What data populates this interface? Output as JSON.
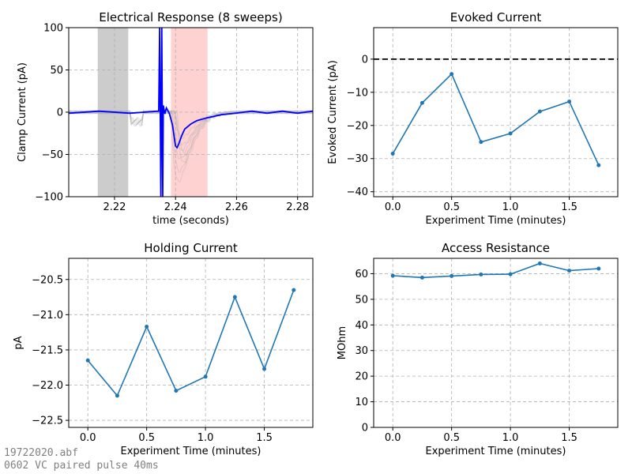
{
  "footer": {
    "filename": "19722020.abf",
    "protocol": "0602 VC paired pulse 40ms"
  },
  "colors": {
    "series": "#1f77b4",
    "sweep_avg": "#0000ff",
    "sweeps": "#aaaaaa",
    "baseline_region": "#7f7f7f",
    "measure_region": "#ff7f7f"
  },
  "chart_data": [
    {
      "id": "response",
      "type": "line",
      "title": "Electrical Response (8 sweeps)",
      "xlabel": "time (seconds)",
      "ylabel": "Clamp Current (pA)",
      "xlim": [
        2.205,
        2.285
      ],
      "ylim": [
        -100,
        100
      ],
      "xticks": [
        2.22,
        2.24,
        2.26,
        2.28
      ],
      "xtick_labels": [
        "2.22",
        "2.24",
        "2.26",
        "2.28"
      ],
      "yticks": [
        -100,
        -50,
        0,
        50,
        100
      ],
      "ytick_labels": [
        "−100",
        "−50",
        "0",
        "50",
        "100"
      ],
      "grid": true,
      "sweep_count": 8,
      "shaded_regions": [
        {
          "name": "baseline",
          "x": [
            2.2145,
            2.2245
          ],
          "color": "#7f7f7f"
        },
        {
          "name": "measurement",
          "x": [
            2.2385,
            2.2505
          ],
          "color": "#ff7f7f"
        }
      ],
      "average_trace": {
        "x": [
          2.205,
          2.215,
          2.225,
          2.2345,
          2.2348,
          2.2352,
          2.2355,
          2.2358,
          2.236,
          2.2365,
          2.237,
          2.2375,
          2.238,
          2.239,
          2.2395,
          2.24,
          2.2405,
          2.241,
          2.242,
          2.243,
          2.245,
          2.247,
          2.25,
          2.255,
          2.26,
          2.265,
          2.27,
          2.275,
          2.28,
          2.285
        ],
        "y": [
          0,
          0,
          0,
          0,
          100,
          -100,
          100,
          -100,
          8,
          -2,
          5,
          2,
          -2,
          -15,
          -28,
          -40,
          -42,
          -38,
          -28,
          -20,
          -14,
          -10,
          -7,
          -3,
          -1,
          0,
          0,
          0,
          0,
          0
        ]
      },
      "sweep_peaks": [
        -82,
        -70,
        -55,
        -45,
        -30,
        -38,
        -60,
        -50
      ]
    },
    {
      "id": "evoked",
      "type": "line",
      "title": "Evoked Current",
      "xlabel": "Experiment Time (minutes)",
      "ylabel": "Evoked Current (pA)",
      "xlim": [
        -0.1625,
        1.9125
      ],
      "ylim": [
        -41.5,
        9.5
      ],
      "xticks": [
        0,
        0.5,
        1,
        1.5
      ],
      "xtick_labels": [
        "0.0",
        "0.5",
        "1.0",
        "1.5"
      ],
      "yticks": [
        -40,
        -30,
        -20,
        -10,
        0
      ],
      "ytick_labels": [
        "−40",
        "−30",
        "−20",
        "−10",
        "0"
      ],
      "grid": true,
      "reference_line": {
        "y": 0,
        "style": "dashed",
        "color": "#000000"
      },
      "series": [
        {
          "x": [
            0,
            0.25,
            0.5,
            0.75,
            1.0,
            1.25,
            1.5,
            1.75
          ],
          "values": [
            -28.5,
            -13.2,
            -4.5,
            -25.0,
            -22.4,
            -15.8,
            -12.8,
            -32.0
          ]
        }
      ]
    },
    {
      "id": "holding",
      "type": "line",
      "title": "Holding Current",
      "xlabel": "Experiment Time (minutes)",
      "ylabel": "pA",
      "xlim": [
        -0.1625,
        1.9125
      ],
      "ylim": [
        -22.6,
        -20.2
      ],
      "xticks": [
        0,
        0.5,
        1,
        1.5
      ],
      "xtick_labels": [
        "0.0",
        "0.5",
        "1.0",
        "1.5"
      ],
      "yticks": [
        -22.5,
        -22,
        -21.5,
        -21,
        -20.5
      ],
      "ytick_labels": [
        "−22.5",
        "−22.0",
        "−21.5",
        "−21.0",
        "−20.5"
      ],
      "grid": true,
      "series": [
        {
          "x": [
            0,
            0.25,
            0.5,
            0.75,
            1.0,
            1.25,
            1.5,
            1.75
          ],
          "values": [
            -21.65,
            -22.15,
            -21.17,
            -22.08,
            -21.88,
            -20.75,
            -21.77,
            -20.65
          ]
        }
      ]
    },
    {
      "id": "access",
      "type": "line",
      "title": "Access Resistance",
      "xlabel": "Experiment Time (minutes)",
      "ylabel": "MOhm",
      "xlim": [
        -0.1625,
        1.9125
      ],
      "ylim": [
        0,
        66
      ],
      "xticks": [
        0,
        0.5,
        1,
        1.5
      ],
      "xtick_labels": [
        "0.0",
        "0.5",
        "1.0",
        "1.5"
      ],
      "yticks": [
        0,
        10,
        20,
        30,
        40,
        50,
        60
      ],
      "ytick_labels": [
        "0",
        "10",
        "20",
        "30",
        "40",
        "50",
        "60"
      ],
      "grid": true,
      "series": [
        {
          "x": [
            0,
            0.25,
            0.5,
            0.75,
            1.0,
            1.25,
            1.5,
            1.75
          ],
          "values": [
            59.2,
            58.5,
            59.1,
            59.7,
            59.8,
            64.0,
            61.2,
            62.0
          ]
        }
      ]
    }
  ]
}
